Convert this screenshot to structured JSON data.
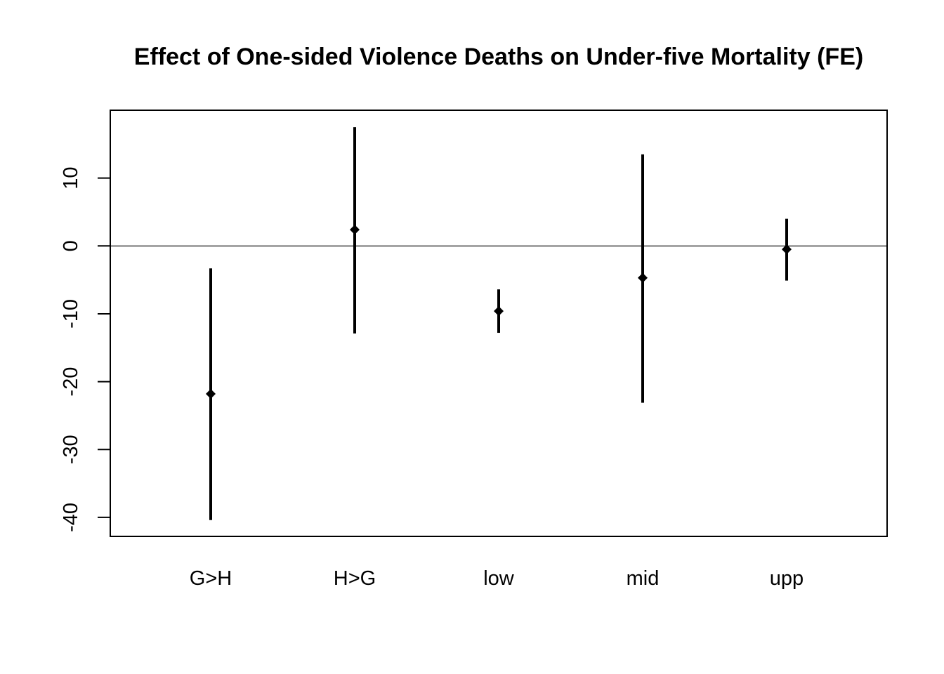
{
  "chart_data": {
    "type": "errorbar",
    "title": "Effect of One-sided Violence Deaths on Under-five Mortality (FE)",
    "xlabel": "",
    "ylabel": "",
    "categories": [
      "G>H",
      "H>G",
      "low",
      "mid",
      "upp"
    ],
    "estimates": [
      -21.8,
      2.4,
      -9.6,
      -4.7,
      -0.5
    ],
    "lower": [
      -40.4,
      -12.9,
      -12.8,
      -23.1,
      -5.1
    ],
    "upper": [
      -3.3,
      17.5,
      -6.4,
      13.5,
      4.0
    ],
    "ylim": [
      -42.8,
      20.0
    ],
    "yticks": [
      -40,
      -30,
      -20,
      -10,
      0,
      10
    ],
    "reference_line": 0,
    "grid": false,
    "colors": {
      "marks": "#000000",
      "axis": "#000000"
    }
  }
}
